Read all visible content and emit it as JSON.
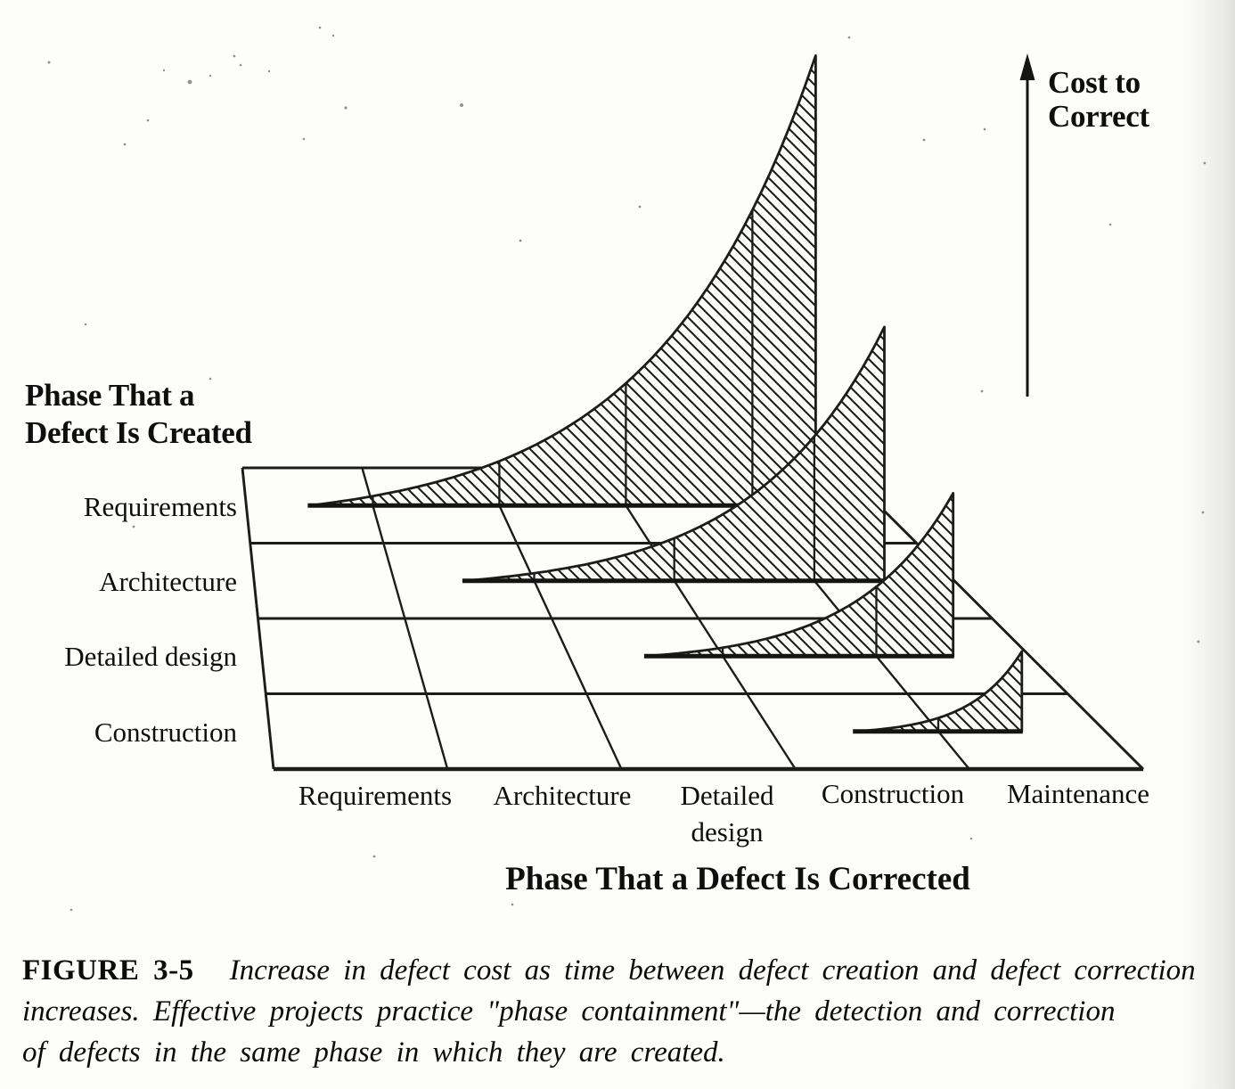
{
  "figure": {
    "y_axis": {
      "line1": "Cost to",
      "line2": "Correct"
    },
    "z_axis": {
      "line1": "Phase That a",
      "line2": "Defect Is Created"
    },
    "x_axis": {
      "title": "Phase That a Defect Is Corrected",
      "labels": [
        "Requirements",
        "Architecture",
        "Detailed",
        "Construction",
        "Maintenance"
      ],
      "detailed_sublabel": "design"
    }
  },
  "chart_data": {
    "type": "area",
    "projection": "3d-perspective",
    "title": "",
    "xlabel": "Phase That a Defect Is Corrected",
    "ylabel": "Cost to Correct",
    "zlabel": "Phase That a Defect Is Created",
    "corrected_phases": [
      "Requirements",
      "Architecture",
      "Detailed design",
      "Construction",
      "Maintenance"
    ],
    "created_phases": [
      "Requirements",
      "Architecture",
      "Detailed design",
      "Construction"
    ],
    "curve_shape": "exponential",
    "hatch": "diagonal",
    "legend": "none",
    "series": [
      {
        "created_phase": "Requirements",
        "correction_span": [
          "Requirements",
          "Maintenance"
        ],
        "relative_peak_height": 1.0
      },
      {
        "created_phase": "Architecture",
        "correction_span": [
          "Architecture",
          "Maintenance"
        ],
        "relative_peak_height": 0.564
      },
      {
        "created_phase": "Detailed design",
        "correction_span": [
          "Detailed design",
          "Maintenance"
        ],
        "relative_peak_height": 0.362
      },
      {
        "created_phase": "Construction",
        "correction_span": [
          "Construction",
          "Maintenance"
        ],
        "relative_peak_height": 0.178
      }
    ]
  },
  "caption": {
    "figure_label": "FIGURE 3-5",
    "line1": "Increase in defect cost as time between defect creation and defect correction",
    "line2": "increases. Effective projects practice \"phase containment\"—the detection and correction",
    "line3": "of defects in the same phase in which they are created."
  },
  "colors": {
    "ink": "#1c1c1c",
    "paper": "#fdfdfb"
  }
}
